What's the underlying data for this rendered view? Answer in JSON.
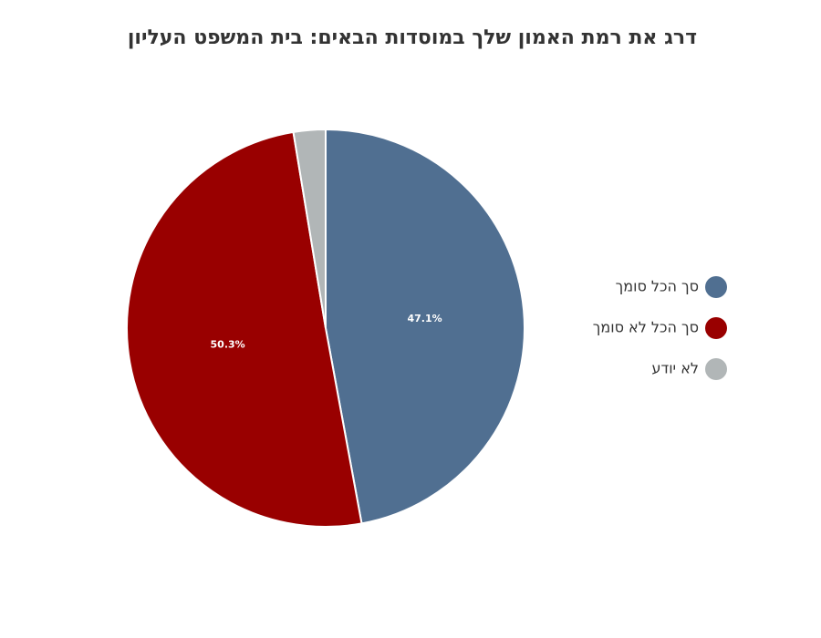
{
  "chart_data": {
    "type": "pie",
    "title": "דרג את רמת האמון שלך במוסדות הבאים: בית המשפט העליון",
    "categories": [
      "סך הכל סומך",
      "סך הכל לא סומך",
      "לא יודע"
    ],
    "values": [
      47.1,
      50.3,
      2.6
    ],
    "value_labels": [
      "47.1%",
      "50.3%",
      null
    ],
    "colors": [
      "#506f91",
      "#990000",
      "#b1b6b7"
    ],
    "legend": "right"
  }
}
